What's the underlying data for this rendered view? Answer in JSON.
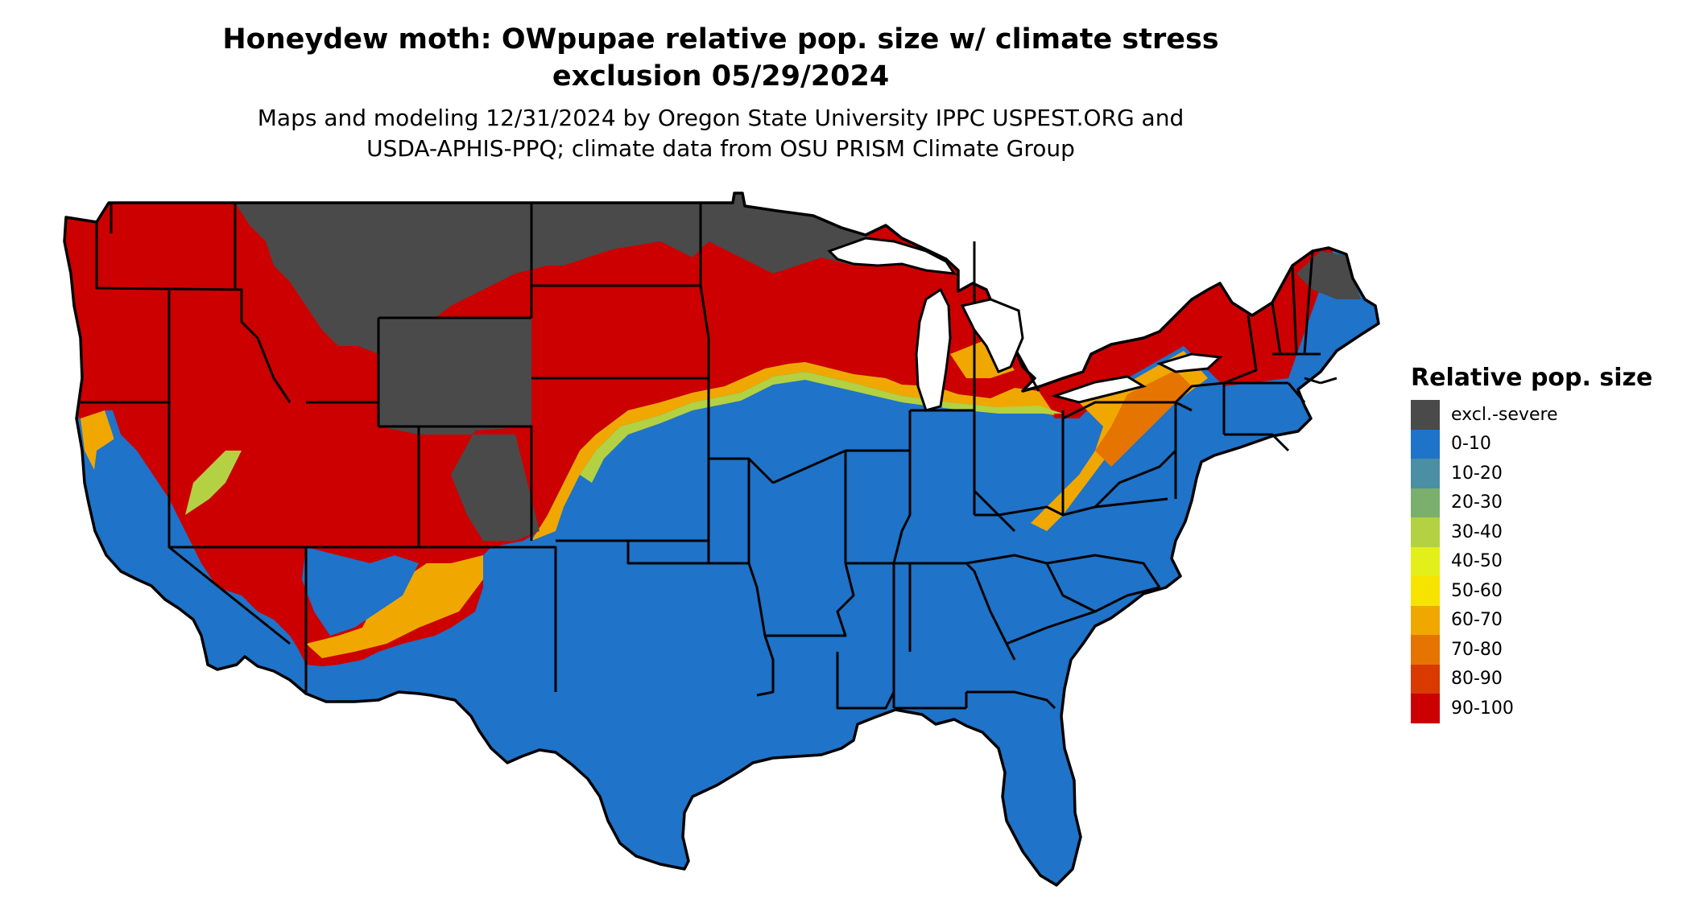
{
  "header": {
    "title_line1": "Honeydew moth: OWpupae relative pop. size w/ climate stress",
    "title_line2": "exclusion 05/29/2024",
    "subtitle_line1": "Maps and modeling 12/31/2024 by Oregon State University IPPC USPEST.ORG and",
    "subtitle_line2": "USDA-APHIS-PPQ; climate data from OSU PRISM Climate Group"
  },
  "legend": {
    "title": "Relative pop. size",
    "items": [
      {
        "label": "excl.-severe",
        "color": "#4a4a4a"
      },
      {
        "label": "0-10",
        "color": "#1f73c8"
      },
      {
        "label": "10-20",
        "color": "#4a8fa3"
      },
      {
        "label": "20-30",
        "color": "#7aaf6e"
      },
      {
        "label": "30-40",
        "color": "#b3d143"
      },
      {
        "label": "40-50",
        "color": "#e3ef1b"
      },
      {
        "label": "50-60",
        "color": "#f7e300"
      },
      {
        "label": "60-70",
        "color": "#f0a800"
      },
      {
        "label": "70-80",
        "color": "#e67400"
      },
      {
        "label": "80-90",
        "color": "#d93a00"
      },
      {
        "label": "90-100",
        "color": "#cc0000"
      }
    ]
  },
  "map": {
    "region": "contiguous-united-states",
    "colors": {
      "excluded": "#4a4a4a",
      "low": "#1f73c8",
      "high": "#cc0000",
      "transition": [
        "#4a8fa3",
        "#b3d143",
        "#f7e300",
        "#f0a800",
        "#e67400"
      ],
      "border": "#000000"
    }
  }
}
